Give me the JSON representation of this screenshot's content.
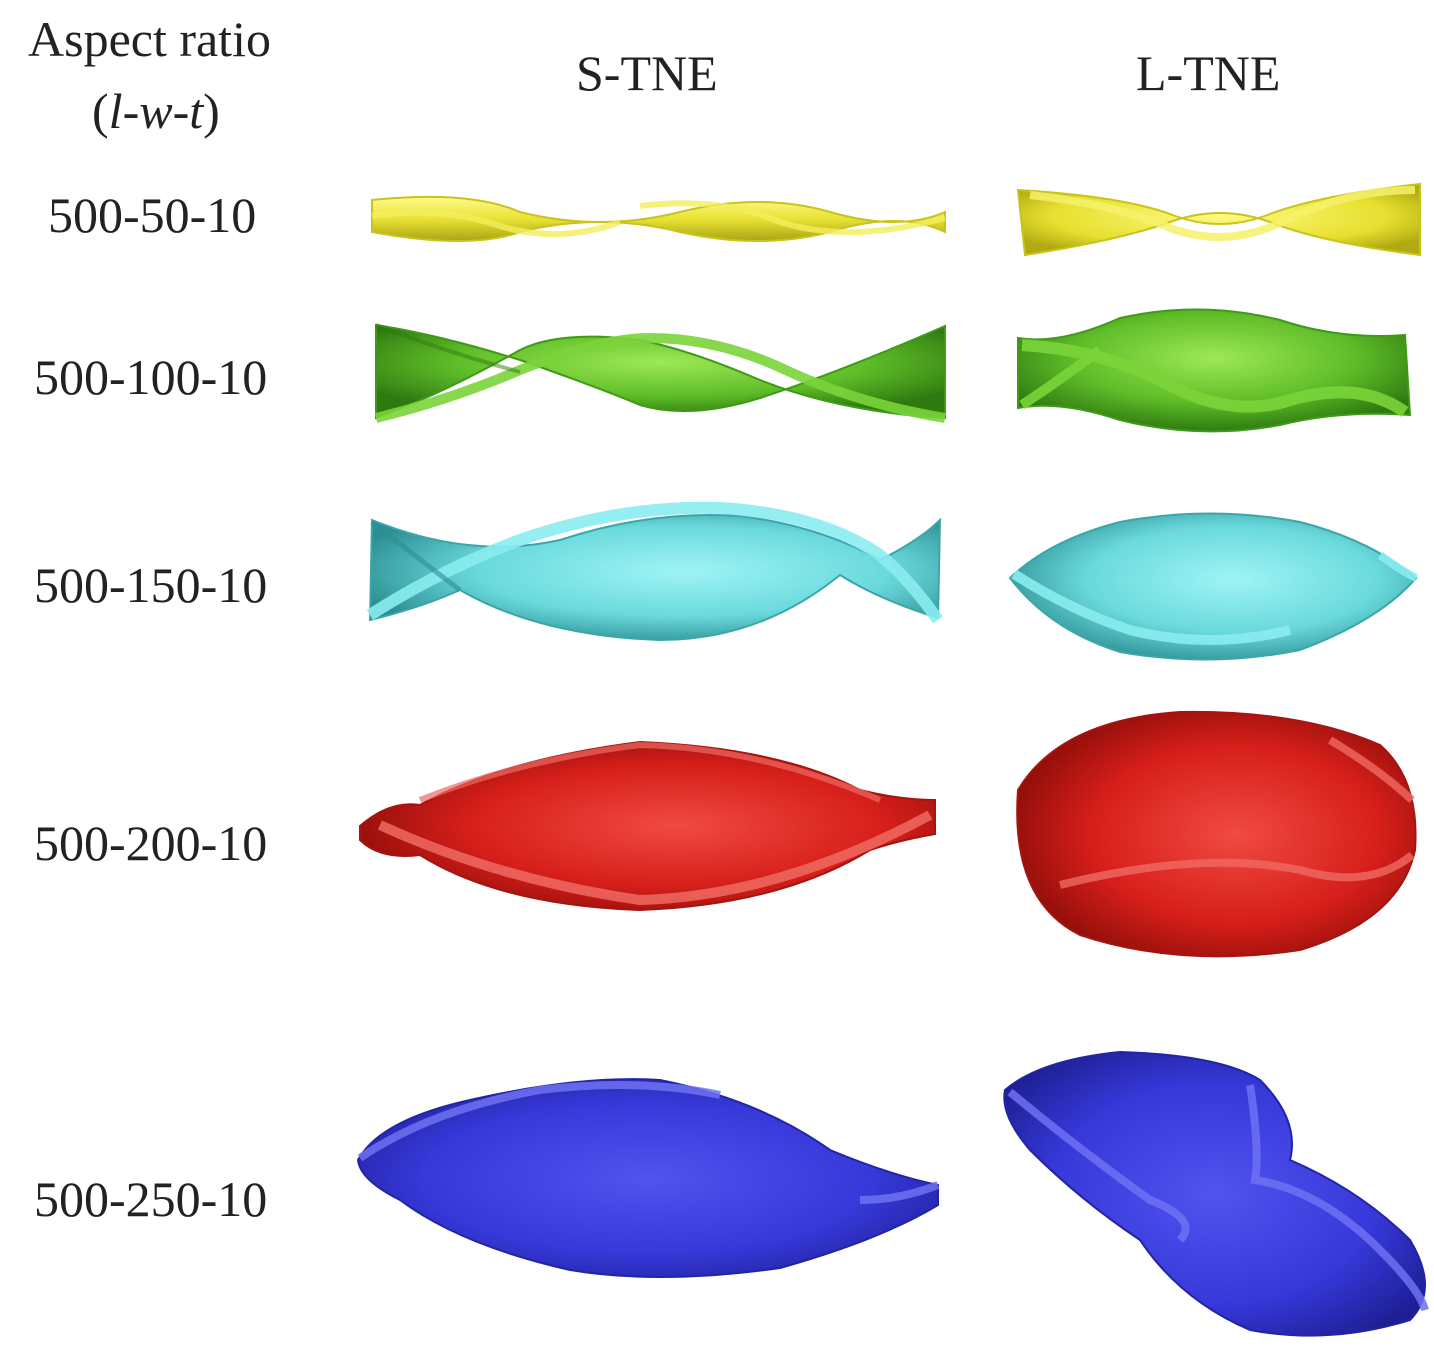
{
  "header": {
    "aspect_label": "Aspect ratio",
    "aspect_sub_open": "(",
    "aspect_l": "l",
    "aspect_dash1": "-",
    "aspect_w": "w",
    "aspect_dash2": "-",
    "aspect_t": "t",
    "aspect_sub_close": ")",
    "col_s": "S-TNE",
    "col_l": "L-TNE"
  },
  "rows": [
    {
      "label": "500-50-10",
      "color": "#e9e235"
    },
    {
      "label": "500-100-10",
      "color": "#62c02c"
    },
    {
      "label": "500-150-10",
      "color": "#6ad9dc"
    },
    {
      "label": "500-200-10",
      "color": "#d71f1a"
    },
    {
      "label": "500-250-10",
      "color": "#3638d8"
    }
  ]
}
